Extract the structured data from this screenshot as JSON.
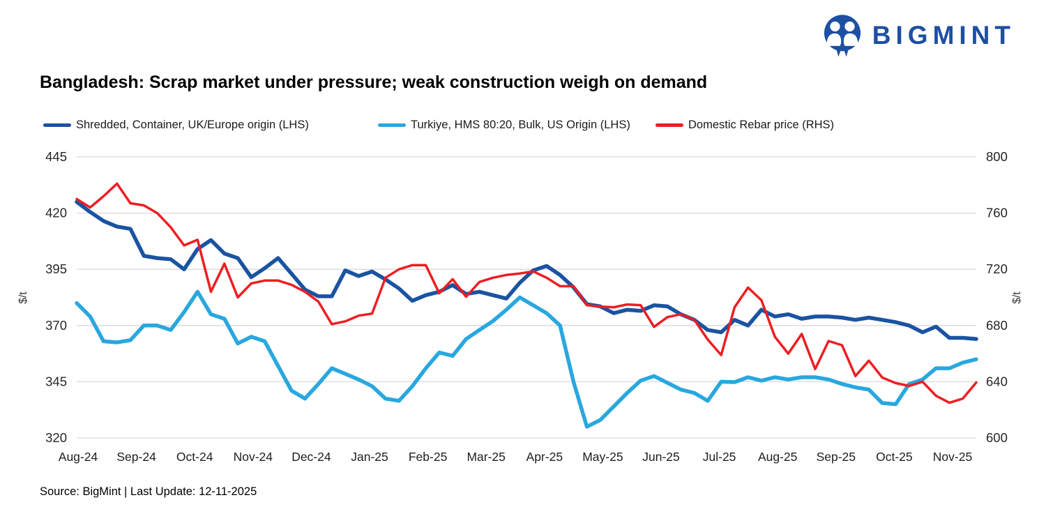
{
  "brand": {
    "name": "BIGMINT",
    "color": "#1d4fa3"
  },
  "title": "Bangladesh: Scrap market under pressure; weak construction weigh on demand",
  "source": "Source: BigMint | Last Update: 12-11-2025",
  "colors": {
    "shredded": "#1a53a1",
    "turkiye": "#29a7df",
    "rebar": "#ee1d23",
    "gridline": "#d9d9d9",
    "axis_text": "#262626"
  },
  "legend": [
    {
      "label": "Shredded, Container, UK/Europe origin (LHS)"
    },
    {
      "label": "Turkiye, HMS 80:20, Bulk, US Origin (LHS)"
    },
    {
      "label": "Domestic Rebar price (RHS)"
    }
  ],
  "chart_data": {
    "type": "line",
    "title": "Bangladesh: Scrap market under pressure; weak construction weigh on demand",
    "x_labels": [
      "Aug-24",
      "Sep-24",
      "Oct-24",
      "Nov-24",
      "Dec-24",
      "Jan-25",
      "Feb-25",
      "Mar-25",
      "Apr-25",
      "May-25",
      "Jun-25",
      "Jul-25",
      "Aug-25",
      "Sep-25",
      "Oct-25",
      "Nov-25"
    ],
    "left_axis": {
      "label": "$/t",
      "ticks": [
        445,
        420,
        395,
        370,
        345,
        320
      ],
      "range": [
        320,
        445
      ]
    },
    "right_axis": {
      "label": "$/t",
      "ticks": [
        800,
        760,
        720,
        680,
        640,
        600
      ],
      "range": [
        600,
        800
      ]
    },
    "grid": "horizontal-only",
    "legend_position": "top",
    "frequency": "weekly",
    "series": [
      {
        "name": "Shredded, Container, UK/Europe origin (LHS)",
        "axis": "left",
        "color_key": "shredded",
        "width": 5.5,
        "values": [
          425,
          420.5,
          416.5,
          414,
          413,
          401,
          400,
          399.5,
          395,
          404,
          408,
          402,
          400,
          391.5,
          395.5,
          400,
          393,
          386,
          383,
          383,
          394.5,
          392,
          394,
          390.5,
          386.5,
          381,
          383.5,
          385,
          388,
          384,
          385,
          383.5,
          382,
          389,
          394.5,
          396.5,
          392.5,
          387,
          379.5,
          378.5,
          375.5,
          377,
          376.5,
          379,
          378.5,
          375,
          372.5,
          368,
          367,
          372.5,
          370,
          377,
          374,
          375,
          373,
          374,
          374,
          373.5,
          372.5,
          373.5,
          372.5,
          371.5,
          370,
          367,
          369.5,
          364.5,
          364.5,
          364
        ]
      },
      {
        "name": "Turkiye, HMS 80:20, Bulk, US Origin (LHS)",
        "axis": "left",
        "color_key": "turkiye",
        "width": 5.5,
        "values": [
          380,
          374,
          363,
          362.5,
          363.5,
          370,
          370,
          368,
          376,
          385,
          375,
          373,
          362,
          365,
          363,
          352,
          341,
          337.5,
          344,
          351,
          348.5,
          346,
          343,
          337.5,
          336.5,
          343,
          351,
          358,
          356.5,
          364,
          368,
          372,
          377,
          382.5,
          379,
          375.5,
          370,
          345,
          325,
          328,
          334,
          340,
          345.5,
          347.5,
          344.5,
          341.5,
          340,
          336.5,
          345,
          344.8,
          347,
          345.5,
          347,
          346,
          347,
          347,
          346,
          344,
          342.5,
          341.5,
          335.5,
          335,
          344,
          346,
          351,
          351,
          353.5,
          355
        ]
      },
      {
        "name": "Domestic Rebar price (RHS)",
        "axis": "right",
        "color_key": "rebar",
        "width": 3.5,
        "values": [
          770,
          764,
          772,
          781,
          767,
          765.5,
          760,
          750,
          737,
          741,
          704,
          724,
          700,
          710,
          712,
          712,
          709,
          704,
          697,
          681,
          683,
          687,
          688.5,
          714,
          720,
          723,
          723,
          703,
          713,
          700.5,
          711,
          714,
          716,
          717,
          718.5,
          714,
          708,
          708,
          694.5,
          693.5,
          693,
          695,
          694.5,
          679,
          686,
          688,
          684,
          670,
          659,
          693,
          707,
          698,
          672,
          660,
          674,
          649,
          669,
          666,
          644,
          655,
          643,
          639,
          637,
          640,
          630,
          625,
          628,
          639.5
        ]
      }
    ]
  }
}
